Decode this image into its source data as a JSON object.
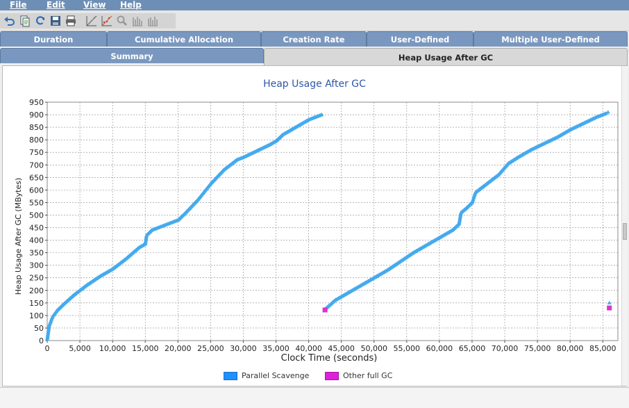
{
  "menu": {
    "items": [
      "File",
      "Edit",
      "View",
      "Help"
    ]
  },
  "toolbar": {
    "icons": [
      "undo-icon",
      "copy-icon",
      "refresh-icon",
      "save-icon",
      "print-icon",
      "chart-line-icon",
      "chart-scatter-icon",
      "zoom-icon",
      "bar-chart-icon",
      "bar-chart-2-icon"
    ]
  },
  "tabs_row1": [
    "Duration",
    "Cumulative Allocation",
    "Creation Rate",
    "User-Defined",
    "Multiple User-Defined"
  ],
  "tabs_row2": [
    "Summary",
    "Heap Usage After GC"
  ],
  "selected_tab": "Heap Usage After GC",
  "status": {
    "text": ""
  },
  "colors": {
    "parallel_scavenge": "#44aaee",
    "other_full_gc": "#dd33cc",
    "title": "#2e57a7",
    "menubar": "#6d8fb5",
    "tab": "#7a98bf"
  },
  "chart_data": {
    "type": "scatter",
    "title": "Heap Usage After GC",
    "xlabel": "Clock Time  (seconds)",
    "ylabel": "Heap Usage After GC  (MBytes)",
    "xlim": [
      0,
      86000
    ],
    "ylim": [
      0,
      950
    ],
    "xticks": [
      0,
      5000,
      10000,
      15000,
      20000,
      25000,
      30000,
      35000,
      40000,
      45000,
      50000,
      55000,
      60000,
      65000,
      70000,
      75000,
      80000,
      85000
    ],
    "xtick_labels": [
      "0",
      "5,000",
      "10,000",
      "15,000",
      "20,000",
      "25,000",
      "30,000",
      "35,000",
      "40,000",
      "45,000",
      "50,000",
      "55,000",
      "60,000",
      "65,000",
      "70,000",
      "75,000",
      "80,000",
      "85,000"
    ],
    "yticks": [
      0,
      50,
      100,
      150,
      200,
      250,
      300,
      350,
      400,
      450,
      500,
      550,
      600,
      650,
      700,
      750,
      800,
      850,
      900,
      950
    ],
    "grid": true,
    "legend_position": "bottom",
    "series": [
      {
        "name": "Parallel Scavenge",
        "marker": "triangle",
        "x": [
          0,
          300,
          800,
          1500,
          2500,
          4000,
          6000,
          8000,
          10000,
          12000,
          14000,
          15000,
          15200,
          16000,
          18000,
          20000,
          21000,
          23000,
          25000,
          27000,
          29000,
          30000,
          32000,
          34000,
          35000,
          36000,
          38000,
          40000,
          42000,
          42500,
          44000,
          46000,
          48000,
          50000,
          52000,
          54000,
          56000,
          58000,
          60000,
          62000,
          63000,
          63300,
          64000,
          65000,
          65500,
          67000,
          69000,
          70500,
          72000,
          74000,
          76000,
          78000,
          80000,
          82000,
          84000,
          85500,
          86000,
          85800
        ],
        "y": [
          5,
          60,
          95,
          120,
          145,
          180,
          220,
          255,
          285,
          325,
          370,
          385,
          420,
          440,
          460,
          480,
          505,
          560,
          625,
          680,
          720,
          730,
          755,
          780,
          795,
          820,
          850,
          880,
          900,
          125,
          160,
          190,
          220,
          250,
          280,
          315,
          350,
          380,
          410,
          440,
          465,
          510,
          525,
          550,
          590,
          620,
          660,
          705,
          730,
          760,
          785,
          810,
          840,
          865,
          890,
          905,
          150,
          910
        ]
      },
      {
        "name": "Other full GC",
        "marker": "square",
        "x": [
          42500,
          86000
        ],
        "y": [
          122,
          130
        ]
      }
    ]
  }
}
